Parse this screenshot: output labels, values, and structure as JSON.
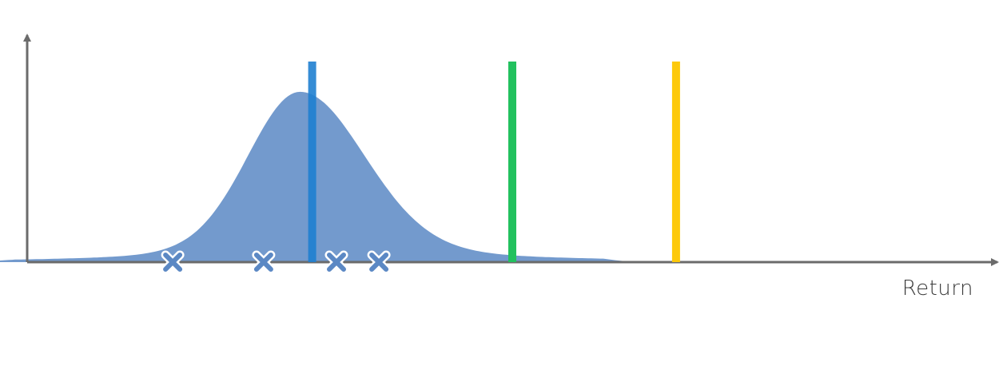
{
  "figure": {
    "x_axis_label": "Return"
  },
  "colors": {
    "axis": "#6b6b6b",
    "distribution_fill": "#5b88c4",
    "marker_fill": "#5b88c4",
    "marker_outline": "#ffffff",
    "line_blue": "#1f7fd0",
    "line_green": "#22c15e",
    "line_yellow": "#fdc90a"
  },
  "chart_data": {
    "type": "area",
    "title": "",
    "xlabel": "Return",
    "ylabel": "",
    "grid": false,
    "legend": "none",
    "distribution": {
      "shape": "bell-shaped density, slightly right-skewed",
      "mode": 0.45,
      "support": [
        -0.1,
        1.0
      ]
    },
    "sample_markers": [
      0.24,
      0.39,
      0.51,
      0.58
    ],
    "vertical_lines": [
      {
        "color": "blue",
        "x": 0.47
      },
      {
        "color": "green",
        "x": 0.8
      },
      {
        "color": "yellow",
        "x": 1.07
      }
    ],
    "xlim": [
      0,
      1.6
    ],
    "ylim": [
      0,
      1.0
    ]
  }
}
